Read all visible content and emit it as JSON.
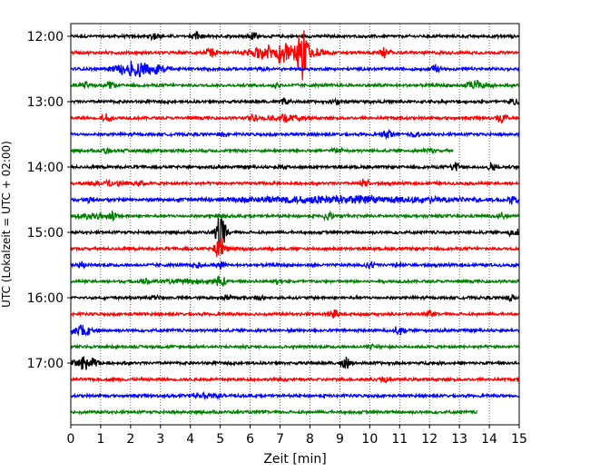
{
  "chart_data": {
    "type": "line",
    "title": "",
    "xlabel": "Zeit  [min]",
    "ylabel": "UTC (Lokalzeit = UTC + 02:00)",
    "xlim": [
      0,
      15
    ],
    "xticks": [
      0,
      1,
      2,
      3,
      4,
      5,
      6,
      7,
      8,
      9,
      10,
      11,
      12,
      13,
      14,
      15
    ],
    "xgrid": "dotted vertical lines at each minute",
    "row_interval_minutes": 15,
    "first_row": "12:00",
    "last_row": "17:45",
    "ytick_labels": [
      "12:00",
      "13:00",
      "14:00",
      "15:00",
      "16:00",
      "17:00"
    ],
    "color_cycle": [
      "#000000",
      "#ff0000",
      "#0000ff",
      "#008000"
    ],
    "rows": [
      {
        "time": "12:00",
        "end_min": 15,
        "events": [
          {
            "t": 2.8,
            "amp": 0.5
          },
          {
            "t": 4.2,
            "amp": 0.6
          },
          {
            "t": 6.1,
            "amp": 0.6
          }
        ]
      },
      {
        "time": "12:15",
        "end_min": 15,
        "events": [
          {
            "t": 4.7,
            "amp": 1.0
          },
          {
            "t": 7.2,
            "amp": 1.4,
            "dur": 1.6
          },
          {
            "t": 7.75,
            "amp": 3.2
          },
          {
            "t": 10.5,
            "amp": 0.7
          }
        ]
      },
      {
        "time": "12:30",
        "end_min": 15,
        "events": [
          {
            "t": 2.3,
            "amp": 1.2,
            "dur": 1.2
          },
          {
            "t": 12.2,
            "amp": 0.7
          }
        ]
      },
      {
        "time": "12:45",
        "end_min": 15,
        "events": [
          {
            "t": 0.5,
            "amp": 0.6
          },
          {
            "t": 1.3,
            "amp": 0.5
          },
          {
            "t": 6.9,
            "amp": 0.4
          },
          {
            "t": 13.6,
            "amp": 0.6,
            "dur": 0.6
          }
        ]
      },
      {
        "time": "13:00",
        "end_min": 15,
        "events": [
          {
            "t": 7.2,
            "amp": 0.4
          },
          {
            "t": 8.9,
            "amp": 0.5
          },
          {
            "t": 14.8,
            "amp": 0.5
          }
        ]
      },
      {
        "time": "13:15",
        "end_min": 15,
        "events": [
          {
            "t": 1.2,
            "amp": 0.6
          },
          {
            "t": 6.1,
            "amp": 0.5
          },
          {
            "t": 7.1,
            "amp": 0.4,
            "dur": 1.0
          },
          {
            "t": 14.4,
            "amp": 0.7
          }
        ]
      },
      {
        "time": "13:30",
        "end_min": 15,
        "events": [
          {
            "t": 5.1,
            "amp": 0.4
          },
          {
            "t": 10.6,
            "amp": 0.6
          },
          {
            "t": 11.5,
            "amp": 0.3
          }
        ]
      },
      {
        "time": "13:45",
        "end_min": 12.8,
        "events": [
          {
            "t": 1.2,
            "amp": 0.4
          },
          {
            "t": 8.9,
            "amp": 0.4
          },
          {
            "t": 12.0,
            "amp": 0.4
          }
        ]
      },
      {
        "time": "14:00",
        "end_min": 15,
        "events": [
          {
            "t": 7.1,
            "amp": 0.3
          },
          {
            "t": 12.9,
            "amp": 0.6
          },
          {
            "t": 14.1,
            "amp": 0.5
          }
        ]
      },
      {
        "time": "14:15",
        "end_min": 15,
        "events": [
          {
            "t": 1.2,
            "amp": 0.3,
            "dur": 1.0
          },
          {
            "t": 2.3,
            "amp": 0.3
          },
          {
            "t": 9.8,
            "amp": 0.7
          }
        ]
      },
      {
        "time": "14:30",
        "end_min": 15,
        "events": [
          {
            "t": 0.6,
            "amp": 0.3
          },
          {
            "t": 9.0,
            "amp": 0.5,
            "dur": 6.0
          },
          {
            "t": 14.8,
            "amp": 0.6
          }
        ]
      },
      {
        "time": "14:45",
        "end_min": 15,
        "events": [
          {
            "t": 0.7,
            "amp": 0.4,
            "dur": 0.8
          },
          {
            "t": 1.4,
            "amp": 0.5
          },
          {
            "t": 5.0,
            "amp": 0.3
          },
          {
            "t": 8.6,
            "amp": 0.6
          },
          {
            "t": 14.4,
            "amp": 0.4
          }
        ]
      },
      {
        "time": "15:00",
        "end_min": 15,
        "events": [
          {
            "t": 5.0,
            "amp": 2.2
          },
          {
            "t": 5.1,
            "amp": 0.6
          },
          {
            "t": 14.8,
            "amp": 0.6
          }
        ]
      },
      {
        "time": "15:15",
        "end_min": 15,
        "events": [
          {
            "t": 4.98,
            "amp": 1.5
          },
          {
            "t": 5.1,
            "amp": 0.9
          }
        ]
      },
      {
        "time": "15:30",
        "end_min": 15,
        "events": [
          {
            "t": 0.4,
            "amp": 0.5
          },
          {
            "t": 4.2,
            "amp": 0.5
          },
          {
            "t": 5.0,
            "amp": 0.5
          },
          {
            "t": 10.0,
            "amp": 0.4
          },
          {
            "t": 11.0,
            "amp": 0.4
          }
        ]
      },
      {
        "time": "15:45",
        "end_min": 15,
        "events": [
          {
            "t": 2.5,
            "amp": 0.3
          },
          {
            "t": 3.8,
            "amp": 0.3,
            "dur": 1.0
          },
          {
            "t": 4.98,
            "amp": 1.3
          },
          {
            "t": 6.9,
            "amp": 0.3
          }
        ]
      },
      {
        "time": "16:00",
        "end_min": 15,
        "events": [
          {
            "t": 2.8,
            "amp": 0.3
          },
          {
            "t": 5.2,
            "amp": 0.3
          },
          {
            "t": 6.3,
            "amp": 0.3
          },
          {
            "t": 14.7,
            "amp": 0.4
          }
        ]
      },
      {
        "time": "16:15",
        "end_min": 15,
        "events": [
          {
            "t": 8.8,
            "amp": 0.7
          },
          {
            "t": 12.0,
            "amp": 0.3
          }
        ]
      },
      {
        "time": "16:30",
        "end_min": 15,
        "events": [
          {
            "t": 0.4,
            "amp": 0.7,
            "dur": 0.6
          },
          {
            "t": 11.0,
            "amp": 0.8
          }
        ]
      },
      {
        "time": "16:45",
        "end_min": 15,
        "events": [
          {
            "t": 10.1,
            "amp": 0.3
          }
        ]
      },
      {
        "time": "17:00",
        "end_min": 15,
        "events": [
          {
            "t": 0.5,
            "amp": 0.9,
            "dur": 0.6
          },
          {
            "t": 9.2,
            "amp": 0.7
          }
        ]
      },
      {
        "time": "17:15",
        "end_min": 15,
        "events": [
          {
            "t": 10.5,
            "amp": 0.3
          }
        ]
      },
      {
        "time": "17:30",
        "end_min": 15,
        "events": [
          {
            "t": 4.6,
            "amp": 0.3,
            "dur": 0.8
          }
        ]
      },
      {
        "time": "17:45",
        "end_min": 13.6,
        "events": []
      }
    ]
  }
}
